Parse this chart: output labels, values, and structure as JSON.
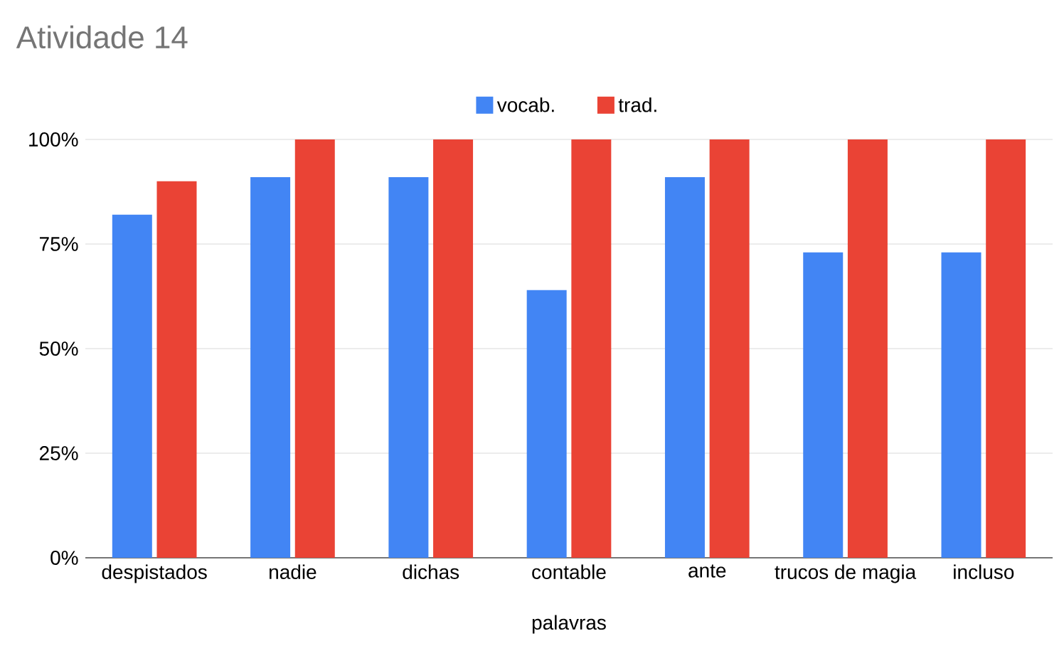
{
  "chart_data": {
    "type": "bar",
    "title": "Atividade 14",
    "xlabel": "palavras",
    "categories": [
      "despistados",
      "nadie",
      "dichas",
      "contable",
      "ante",
      "trucos de magia",
      "incluso"
    ],
    "series": [
      {
        "name": "vocab.",
        "color": "#4285f4",
        "values": [
          82,
          91,
          91,
          64,
          91,
          73,
          73
        ]
      },
      {
        "name": "trad.",
        "color": "#ea4335",
        "values": [
          90,
          100,
          100,
          100,
          100,
          100,
          100
        ]
      }
    ],
    "ylim": [
      0,
      100
    ],
    "yticks": [
      {
        "value": 0,
        "label": "0%"
      },
      {
        "value": 25,
        "label": "25%"
      },
      {
        "value": 50,
        "label": "50%"
      },
      {
        "value": 75,
        "label": "75%"
      },
      {
        "value": 100,
        "label": "100%"
      }
    ],
    "grid": "y",
    "legend": "top"
  }
}
